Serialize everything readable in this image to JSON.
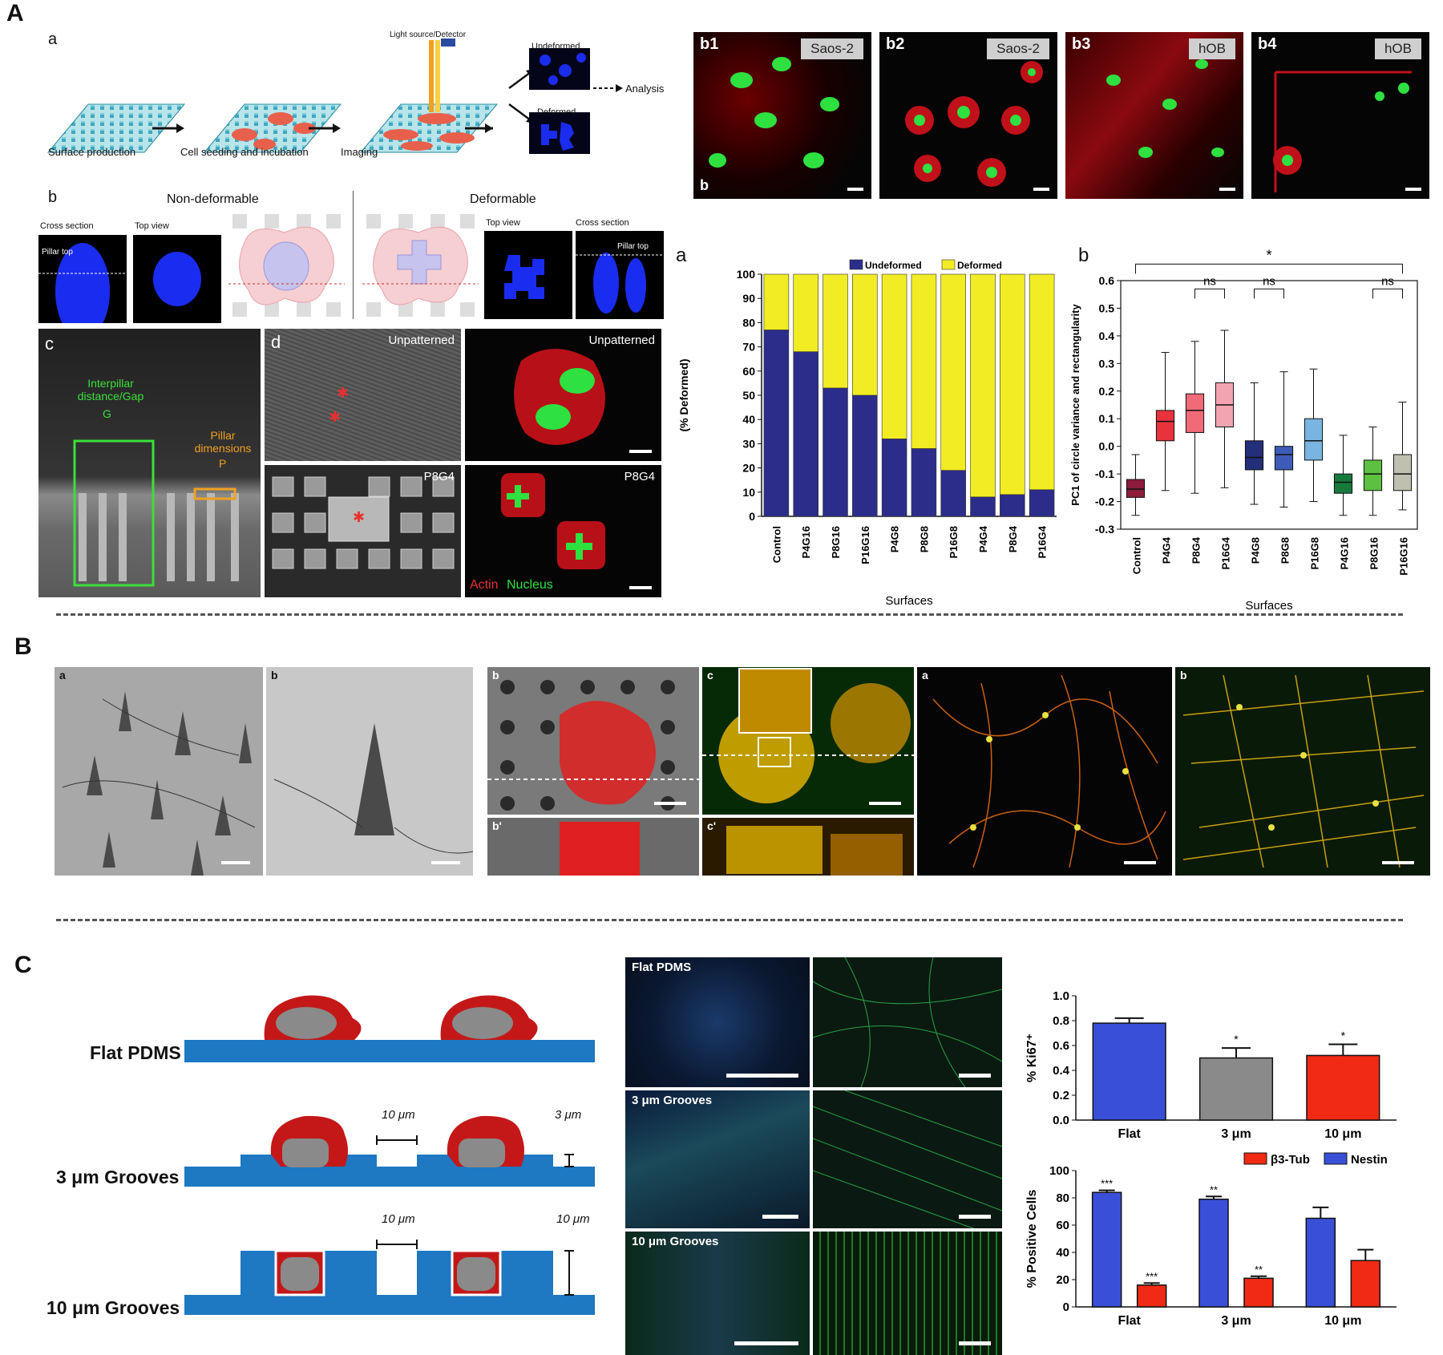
{
  "panelA": {
    "letter": "A",
    "a": {
      "label": "a",
      "steps": [
        "Surface production",
        "Cell seeding and incubation",
        "Imaging"
      ],
      "light_label": "Light source/Detector",
      "undeformed": "Undeformed",
      "deformed": "Deformed",
      "analysis": "Analysis"
    },
    "b": {
      "label": "b",
      "non_deformable": "Non-deformable",
      "deformable": "Deformable",
      "cross_section": "Cross section",
      "top_view": "Top view",
      "pillar_top": "Pillar top"
    },
    "c": {
      "label": "c",
      "gap_text": "Interpillar distance/Gap",
      "gap_letter": "G",
      "dim_text": "Pillar dimensions",
      "dim_letter": "P"
    },
    "d": {
      "label": "d",
      "unpatterned": "Unpatterned",
      "p8g4": "P8G4",
      "actin": "Actin",
      "nucleus": "Nucleus"
    },
    "micro": [
      {
        "label": "b1",
        "badge": "Saos-2",
        "sub": "b"
      },
      {
        "label": "b2",
        "badge": "Saos-2"
      },
      {
        "label": "b3",
        "badge": "hOB"
      },
      {
        "label": "b4",
        "badge": "hOB"
      }
    ]
  },
  "chart_data": [
    {
      "type": "bar",
      "id": "stacked",
      "panel_label": "a",
      "categories": [
        "Control",
        "P4G16",
        "P8G16",
        "P16G16",
        "P4G8",
        "P8G8",
        "P16G8",
        "P4G4",
        "P8G4",
        "P16G4"
      ],
      "series": [
        {
          "name": "Undeformed",
          "values": [
            77,
            68,
            53,
            50,
            32,
            28,
            19,
            8,
            9,
            11
          ],
          "color": "#2c2c8a"
        },
        {
          "name": "Deformed",
          "values": [
            23,
            32,
            47,
            50,
            68,
            72,
            81,
            92,
            91,
            89
          ],
          "color": "#f2ec24"
        }
      ],
      "ylabel": "(% Deformed)",
      "xlabel": "Surfaces",
      "yticks": [
        0,
        10,
        20,
        30,
        40,
        50,
        60,
        70,
        80,
        90,
        100
      ],
      "ylim": [
        0,
        100
      ],
      "legend": "top"
    },
    {
      "type": "box",
      "id": "boxplot",
      "panel_label": "b",
      "categories": [
        "Control",
        "P4G4",
        "P8G4",
        "P16G4",
        "P4G8",
        "P8G8",
        "P16G8",
        "P4G16",
        "P8G16",
        "P16G16"
      ],
      "colors": [
        "#8c1c3a",
        "#e8323c",
        "#f06a78",
        "#f4a4b0",
        "#232f78",
        "#3d5cb8",
        "#7ab4e0",
        "#167a3c",
        "#5cc040",
        "#c0c0b0"
      ],
      "boxes": [
        {
          "q1": -0.185,
          "median": -0.155,
          "q3": -0.12,
          "min": -0.25,
          "max": -0.03
        },
        {
          "q1": 0.02,
          "median": 0.09,
          "q3": 0.13,
          "min": -0.16,
          "max": 0.34
        },
        {
          "q1": 0.05,
          "median": 0.13,
          "q3": 0.19,
          "min": -0.17,
          "max": 0.38
        },
        {
          "q1": 0.07,
          "median": 0.15,
          "q3": 0.23,
          "min": -0.15,
          "max": 0.42
        },
        {
          "q1": -0.085,
          "median": -0.04,
          "q3": 0.02,
          "min": -0.21,
          "max": 0.23
        },
        {
          "q1": -0.085,
          "median": -0.03,
          "q3": 0.0,
          "min": -0.22,
          "max": 0.27
        },
        {
          "q1": -0.05,
          "median": 0.02,
          "q3": 0.1,
          "min": -0.2,
          "max": 0.28
        },
        {
          "q1": -0.17,
          "median": -0.13,
          "q3": -0.1,
          "min": -0.25,
          "max": 0.04
        },
        {
          "q1": -0.16,
          "median": -0.1,
          "q3": -0.05,
          "min": -0.25,
          "max": 0.07
        },
        {
          "q1": -0.16,
          "median": -0.1,
          "q3": -0.03,
          "min": -0.23,
          "max": 0.16
        }
      ],
      "ylabel": "PC1 of circle variance and rectangularity",
      "xlabel": "Surfaces",
      "yticks": [
        -0.3,
        -0.2,
        -0.1,
        0.0,
        0.1,
        0.2,
        0.3,
        0.4,
        0.5,
        0.6
      ],
      "ylim": [
        -0.3,
        0.6
      ],
      "annotations": [
        "*",
        "ns",
        "ns",
        "ns"
      ]
    },
    {
      "type": "bar",
      "id": "ki67",
      "categories": [
        "Flat",
        "3 μm",
        "10 μm"
      ],
      "values": [
        0.78,
        0.5,
        0.52
      ],
      "errors": [
        0.04,
        0.08,
        0.09
      ],
      "colors": [
        "#3a4fd8",
        "#8a8a8a",
        "#f02a14"
      ],
      "sig": [
        "",
        "*",
        "*"
      ],
      "ylabel": "% Ki67⁺",
      "yticks": [
        0.0,
        0.2,
        0.4,
        0.6,
        0.8,
        1.0
      ],
      "ylim": [
        0,
        1.0
      ]
    },
    {
      "type": "bar",
      "id": "positive",
      "categories": [
        "Flat",
        "3 μm",
        "10 μm"
      ],
      "series": [
        {
          "name": "β3-Tub",
          "values": [
            16,
            21,
            34
          ],
          "errors": [
            1.5,
            1.5,
            8
          ],
          "sig": [
            "***",
            "**",
            ""
          ],
          "color": "#f02a14"
        },
        {
          "name": "Nestin",
          "values": [
            84,
            79,
            65
          ],
          "errors": [
            1.5,
            2,
            8
          ],
          "sig": [
            "***",
            "**",
            ""
          ],
          "color": "#3a4fd8"
        }
      ],
      "ylabel": "% Positive Cells",
      "yticks": [
        0,
        20,
        40,
        60,
        80,
        100
      ],
      "ylim": [
        0,
        100
      ],
      "legend": "top-right"
    }
  ],
  "panelB": {
    "letter": "B",
    "labels": [
      "a",
      "b",
      "b",
      "b'",
      "c",
      "c'",
      "a",
      "b"
    ]
  },
  "panelC": {
    "letter": "C",
    "rows": [
      "Flat PDMS",
      "3 μm Grooves",
      "10 μm Grooves"
    ],
    "dim_10": "10 μm",
    "dim_3": "3 μm",
    "micro_labels": [
      "Flat PDMS",
      "3 μm Grooves",
      "10 μm Grooves"
    ]
  }
}
